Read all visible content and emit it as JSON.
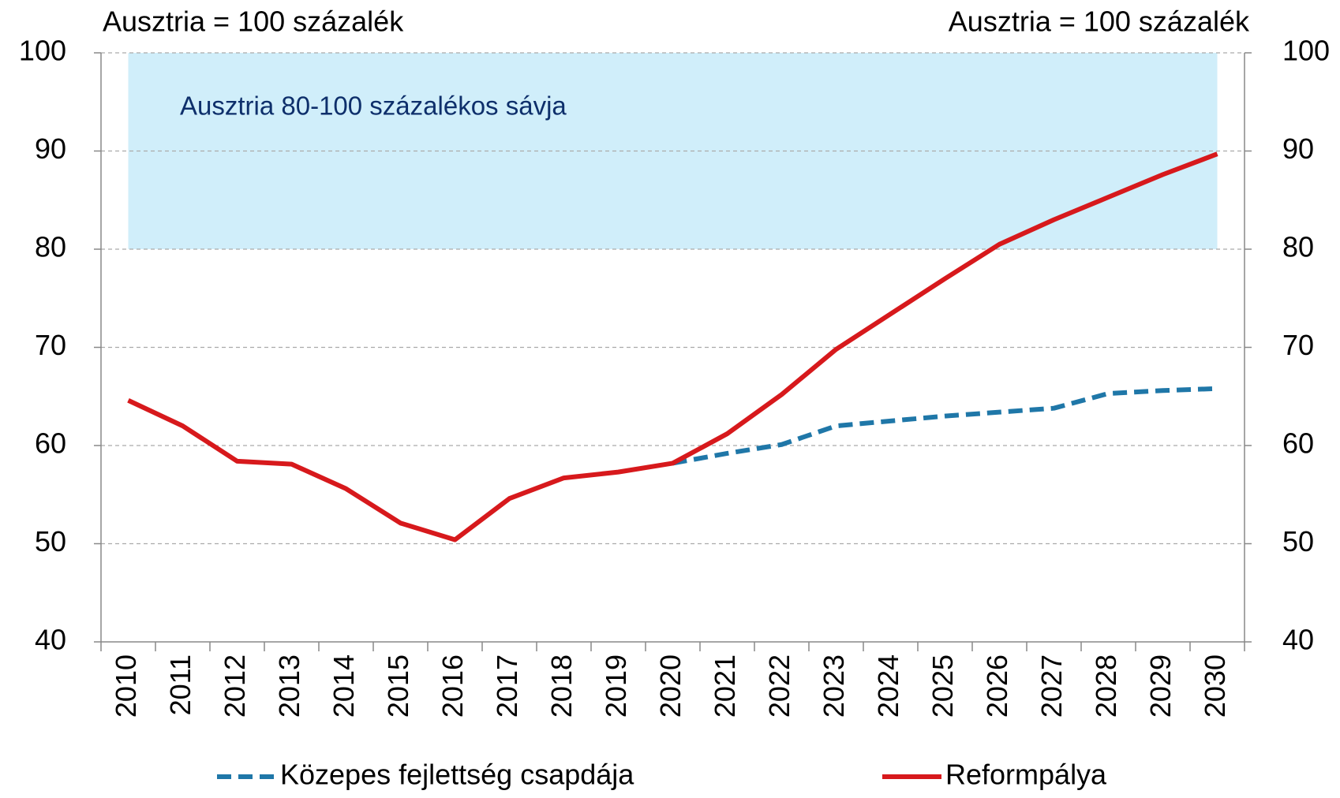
{
  "chart_data": {
    "type": "line",
    "y_axis_label": "Ausztria = 100 százalék",
    "y2_axis_label": "Ausztria = 100 százalék",
    "band": {
      "label": "Ausztria 80-100 százalékos sávja",
      "from": 80,
      "to": 100,
      "color": "#d0eefa"
    },
    "categories": [
      "2010",
      "2011",
      "2012",
      "2013",
      "2014",
      "2015",
      "2016",
      "2017",
      "2018",
      "2019",
      "2020",
      "2021",
      "2022",
      "2023",
      "2024",
      "2025",
      "2026",
      "2027",
      "2028",
      "2029",
      "2030"
    ],
    "series": [
      {
        "name": "Közepes fejlettség csapdája",
        "color": "#1f77a8",
        "dashed": true,
        "values": [
          null,
          null,
          null,
          null,
          null,
          null,
          null,
          null,
          null,
          null,
          58.2,
          59.2,
          60.1,
          62.0,
          62.5,
          63.0,
          63.4,
          63.8,
          65.3,
          65.6,
          65.8
        ]
      },
      {
        "name": "Reformpálya",
        "color": "#d7191c",
        "dashed": false,
        "values": [
          64.6,
          62.0,
          58.4,
          58.1,
          55.6,
          52.1,
          50.4,
          54.6,
          56.7,
          57.3,
          58.2,
          61.2,
          65.2,
          69.8,
          73.4,
          77.0,
          80.5,
          83.0,
          85.3,
          87.6,
          89.7
        ]
      }
    ],
    "ylim": [
      40,
      100
    ],
    "yticks": [
      40,
      50,
      60,
      70,
      80,
      90,
      100
    ],
    "y2lim": [
      40,
      100
    ],
    "y2ticks": [
      40,
      50,
      60,
      70,
      80,
      90,
      100
    ],
    "grid": true,
    "legend": "bottom"
  }
}
